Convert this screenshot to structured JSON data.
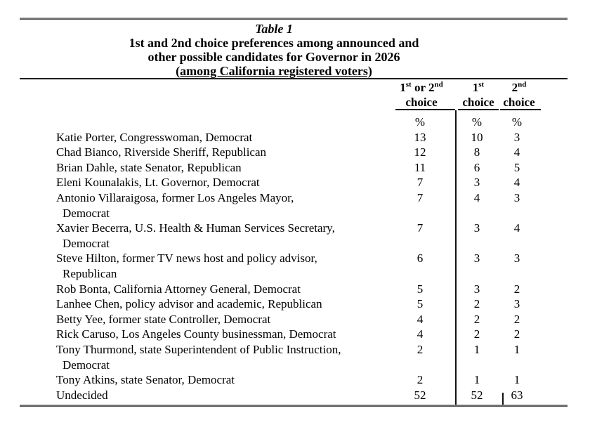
{
  "title": {
    "caption": "Table 1",
    "line1": "1st and 2nd choice preferences among announced and",
    "line2": "other possible candidates for Governor in 2026",
    "line3": "(among California registered voters)"
  },
  "header": {
    "col1": {
      "a": "1",
      "a_sup": "st",
      "b": " or ",
      "c": "2",
      "c_sup": "nd",
      "line2": "choice"
    },
    "col2": {
      "a": "1",
      "a_sup": "st",
      "line2": "choice"
    },
    "col3": {
      "a": "2",
      "a_sup": "nd",
      "line2": "choice"
    },
    "percent": "%"
  },
  "rows": [
    {
      "line1": "Katie Porter, Congresswoman, Democrat",
      "first_or_second": "13",
      "first": "10",
      "second": "3"
    },
    {
      "line1": "Chad Bianco, Riverside Sheriff, Republican",
      "first_or_second": "12",
      "first": "8",
      "second": "4"
    },
    {
      "line1": "Brian Dahle, state Senator, Republican",
      "first_or_second": "11",
      "first": "6",
      "second": "5"
    },
    {
      "line1": "Eleni Kounalakis, Lt. Governor, Democrat",
      "first_or_second": "7",
      "first": "3",
      "second": "4"
    },
    {
      "line1": "Antonio Villaraigosa, former Los Angeles Mayor,",
      "line2": "Democrat",
      "first_or_second": "7",
      "first": "4",
      "second": "3"
    },
    {
      "line1": "Xavier Becerra, U.S. Health & Human Services Secretary,",
      "line2": "Democrat",
      "first_or_second": "7",
      "first": "3",
      "second": "4"
    },
    {
      "line1": "Steve Hilton, former TV news host and policy advisor,",
      "line2": "Republican",
      "first_or_second": "6",
      "first": "3",
      "second": "3"
    },
    {
      "line1": "Rob Bonta, California Attorney General, Democrat",
      "first_or_second": "5",
      "first": "3",
      "second": "2"
    },
    {
      "line1": "Lanhee Chen, policy advisor and academic, Republican",
      "first_or_second": "5",
      "first": "2",
      "second": "3"
    },
    {
      "line1": "Betty Yee, former state Controller, Democrat",
      "first_or_second": "4",
      "first": "2",
      "second": "2"
    },
    {
      "line1": "Rick Caruso, Los Angeles County businessman, Democrat",
      "first_or_second": "4",
      "first": "2",
      "second": "2"
    },
    {
      "line1": "Tony Thurmond, state Superintendent of Public Instruction,",
      "line2": "Democrat",
      "first_or_second": "2",
      "first": "1",
      "second": "1"
    },
    {
      "line1": "Tony Atkins, state Senator, Democrat",
      "first_or_second": "2",
      "first": "1",
      "second": "1"
    },
    {
      "line1": "Undecided",
      "first_or_second": "52",
      "first": "52",
      "second": "63"
    }
  ],
  "colors": {
    "text": "#000000",
    "rule_dark": "#1c1c1c",
    "rule_gray": "#8f8f8f"
  }
}
